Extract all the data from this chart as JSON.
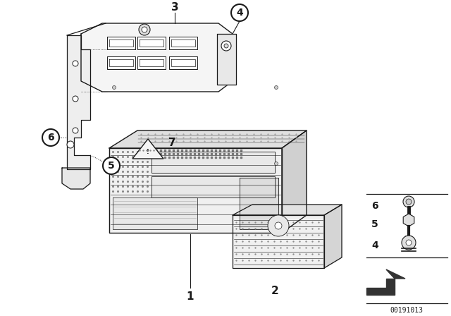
{
  "bg_color": "#ffffff",
  "fig_width": 6.4,
  "fig_height": 4.48,
  "diagram_id": "00191013",
  "gray": "#1a1a1a",
  "light_gray": "#d0d0d0",
  "mid_gray": "#888888"
}
